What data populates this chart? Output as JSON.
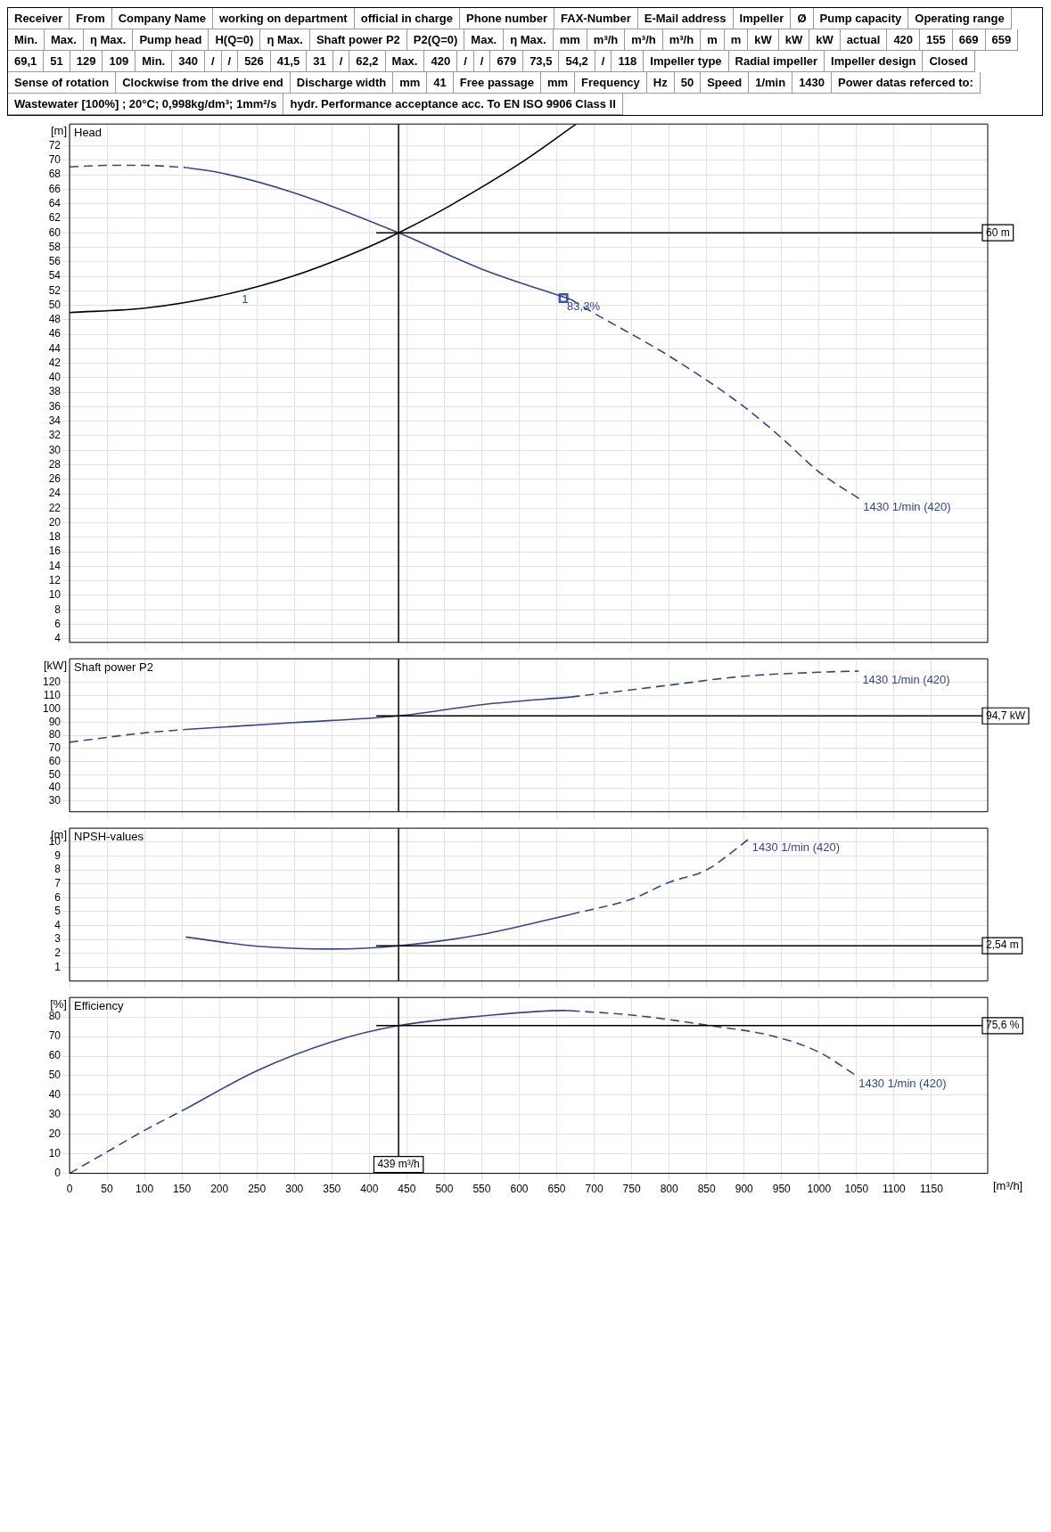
{
  "chart_data": [
    {
      "type": "other",
      "annotations": [
        "Receiver",
        "From",
        "Company Name",
        "working on department",
        "official in charge",
        "Phone number",
        "FAX-Number",
        "E-Mail address",
        "Impeller",
        "Ø",
        "Pump capacity",
        "Operating range",
        "Min.",
        "Max.",
        "η Max.",
        "Pump head",
        "H(Q=0)",
        "η Max.",
        "Shaft power P2",
        "P2(Q=0)",
        "Max.",
        "η Max.",
        "mm",
        "m³/h",
        "m³/h",
        "m³/h",
        "m",
        "m",
        "kW",
        "kW",
        "kW",
        "actual",
        "420",
        "155",
        "669",
        "659",
        "69,1",
        "51",
        "129",
        "109",
        "Min.",
        "340",
        "/",
        "/",
        "526",
        "41,5",
        "31",
        "/",
        "62,2",
        "Max.",
        "420",
        "/",
        "/",
        "679",
        "73,5",
        "54,2",
        "/",
        "118",
        "Impeller type",
        "Radial impeller",
        "Impeller design",
        "Closed",
        "Sense of rotation",
        "Clockwise from the drive end",
        "Discharge width",
        "mm",
        "41",
        "Free passage",
        "mm",
        "Frequency",
        "Hz",
        "50",
        "Speed",
        "1/min",
        "1430",
        "Power datas referced to:",
        "Wastewater [100%] ; 20°C; 0,998kg/dm³; 1mm²/s",
        "hydr. Performance acceptance acc. To EN ISO 9906 Class II"
      ]
    },
    {
      "type": "line",
      "title": "Head",
      "ylabel": "[m]",
      "xlim": [
        0,
        1225
      ],
      "xticks": [
        0,
        50,
        100,
        150,
        200,
        250,
        300,
        350,
        400,
        450,
        500,
        550,
        600,
        650,
        700,
        750,
        800,
        850,
        900,
        950,
        1000,
        1050,
        1100,
        1150
      ],
      "ylim": [
        3.5,
        75
      ],
      "yticks": [
        4,
        6,
        8,
        10,
        12,
        14,
        16,
        18,
        20,
        22,
        24,
        26,
        28,
        30,
        32,
        34,
        36,
        38,
        40,
        42,
        44,
        46,
        48,
        50,
        52,
        54,
        56,
        58,
        60,
        62,
        64,
        66,
        68,
        70,
        72
      ],
      "grid": true,
      "tick_labels": "y",
      "series": [
        {
          "color": "#34468a",
          "line_style": "dashed",
          "x": [
            0,
            50,
            100,
            155
          ],
          "values": [
            69.1,
            69.3,
            69.3,
            69
          ]
        },
        {
          "color": "#34468a",
          "line_style": "solid",
          "x": [
            155,
            200,
            300,
            439,
            550,
            669
          ],
          "values": [
            69,
            68.3,
            65.5,
            60,
            55,
            50.8
          ]
        },
        {
          "color": "#34468a",
          "line_style": "dashed",
          "x": [
            669,
            700,
            800,
            900,
            950,
            1000,
            1054
          ],
          "values": [
            50.8,
            48.9,
            43,
            36,
            31.7,
            27,
            23.3
          ]
        },
        {
          "color": "#000000",
          "line_style": "solid",
          "x": [
            0,
            100,
            200,
            300,
            400,
            439,
            500,
            600,
            676
          ],
          "values": [
            49,
            49.6,
            51.3,
            54.1,
            58.1,
            60,
            63.3,
            69.5,
            75
          ]
        },
        {
          "type": "scatter",
          "marker": "square",
          "color": "#3a50b0",
          "x": [
            659
          ],
          "values": [
            51
          ]
        }
      ],
      "ref_lines": [
        {
          "axis": "y",
          "value": 60,
          "label": "60 m"
        },
        {
          "axis": "x",
          "value": 439
        }
      ],
      "annotations": [
        {
          "text": "1",
          "x": 225,
          "y": 52
        },
        {
          "text": "83,3%",
          "x": 659,
          "y": 51
        },
        {
          "text": "1430 1/min (420)",
          "x": 1054,
          "y": 23.3
        }
      ]
    },
    {
      "type": "line",
      "title": "Shaft power P2",
      "ylabel": "[kW]",
      "xlim": [
        0,
        1225
      ],
      "xticks": [
        0,
        50,
        100,
        150,
        200,
        250,
        300,
        350,
        400,
        450,
        500,
        550,
        600,
        650,
        700,
        750,
        800,
        850,
        900,
        950,
        1000,
        1050,
        1100,
        1150
      ],
      "ylim": [
        22,
        138
      ],
      "yticks": [
        30,
        40,
        50,
        60,
        70,
        80,
        90,
        100,
        110,
        120
      ],
      "grid": true,
      "tick_labels": "y",
      "series": [
        {
          "color": "#34468a",
          "line_style": "dashed",
          "x": [
            0,
            100,
            155
          ],
          "values": [
            74.7,
            81.8,
            84.4
          ]
        },
        {
          "color": "#34468a",
          "line_style": "solid",
          "x": [
            155,
            300,
            439,
            550,
            669
          ],
          "values": [
            84.4,
            89.6,
            94.7,
            103.2,
            109
          ]
        },
        {
          "color": "#34468a",
          "line_style": "dashed",
          "x": [
            669,
            750,
            800,
            900,
            1000,
            1053
          ],
          "values": [
            109,
            114.5,
            118,
            124.8,
            127.8,
            128.7
          ]
        }
      ],
      "ref_lines": [
        {
          "axis": "y",
          "value": 94.7,
          "label": "94,7 kW"
        },
        {
          "axis": "x",
          "value": 439
        }
      ],
      "annotations": [
        {
          "text": "1430 1/min (420)",
          "x": 1053,
          "y": 128.7
        }
      ]
    },
    {
      "type": "line",
      "title": "NPSH-values",
      "ylabel": "[m]",
      "xlim": [
        0,
        1225
      ],
      "xticks": [
        0,
        50,
        100,
        150,
        200,
        250,
        300,
        350,
        400,
        450,
        500,
        550,
        600,
        650,
        700,
        750,
        800,
        850,
        900,
        950,
        1000,
        1050,
        1100,
        1150
      ],
      "ylim": [
        0,
        11
      ],
      "yticks": [
        1,
        2,
        3,
        4,
        5,
        6,
        7,
        8,
        9,
        10
      ],
      "grid": true,
      "tick_labels": "y",
      "series": [
        {
          "color": "#34468a",
          "line_style": "solid",
          "x": [
            155,
            250,
            350,
            439,
            550,
            669
          ],
          "values": [
            3.17,
            2.5,
            2.3,
            2.54,
            3.35,
            4.8
          ]
        },
        {
          "color": "#34468a",
          "line_style": "dashed",
          "x": [
            669,
            750,
            800,
            850,
            906
          ],
          "values": [
            4.8,
            5.9,
            7.1,
            8,
            10.2
          ]
        }
      ],
      "ref_lines": [
        {
          "axis": "y",
          "value": 2.54,
          "label": "2,54 m"
        },
        {
          "axis": "x",
          "value": 439
        }
      ],
      "annotations": [
        {
          "text": "1430 1/min (420)",
          "x": 906,
          "y": 10.2
        }
      ]
    },
    {
      "type": "line",
      "title": "Efficiency",
      "ylabel": "[%]",
      "xlabel": "[m³/h]",
      "xlim": [
        0,
        1225
      ],
      "xticks": [
        0,
        50,
        100,
        150,
        200,
        250,
        300,
        350,
        400,
        450,
        500,
        550,
        600,
        650,
        700,
        750,
        800,
        850,
        900,
        950,
        1000,
        1050,
        1100,
        1150
      ],
      "ylim": [
        0,
        90
      ],
      "yticks": [
        0,
        10,
        20,
        30,
        40,
        50,
        60,
        70,
        80
      ],
      "grid": true,
      "series": [
        {
          "color": "#34468a",
          "line_style": "dashed",
          "x": [
            0,
            50,
            100,
            155
          ],
          "values": [
            0,
            11,
            22,
            33
          ]
        },
        {
          "color": "#34468a",
          "line_style": "solid",
          "x": [
            155,
            250,
            350,
            439,
            550,
            659,
            669
          ],
          "values": [
            33,
            52.5,
            67.3,
            75.6,
            80.5,
            83.3,
            83.2
          ]
        },
        {
          "color": "#34468a",
          "line_style": "dashed",
          "x": [
            669,
            750,
            858,
            938,
            1000,
            1048
          ],
          "values": [
            83.2,
            81,
            75.4,
            70.3,
            62,
            50.4
          ]
        }
      ],
      "ref_lines": [
        {
          "axis": "y",
          "value": 75.6,
          "label": "75,6 %"
        },
        {
          "axis": "x",
          "value": 439,
          "label": "439 m³/h"
        }
      ],
      "annotations": [
        {
          "text": "1430 1/min (420)",
          "x": 1048,
          "y": 50.4
        }
      ]
    }
  ]
}
